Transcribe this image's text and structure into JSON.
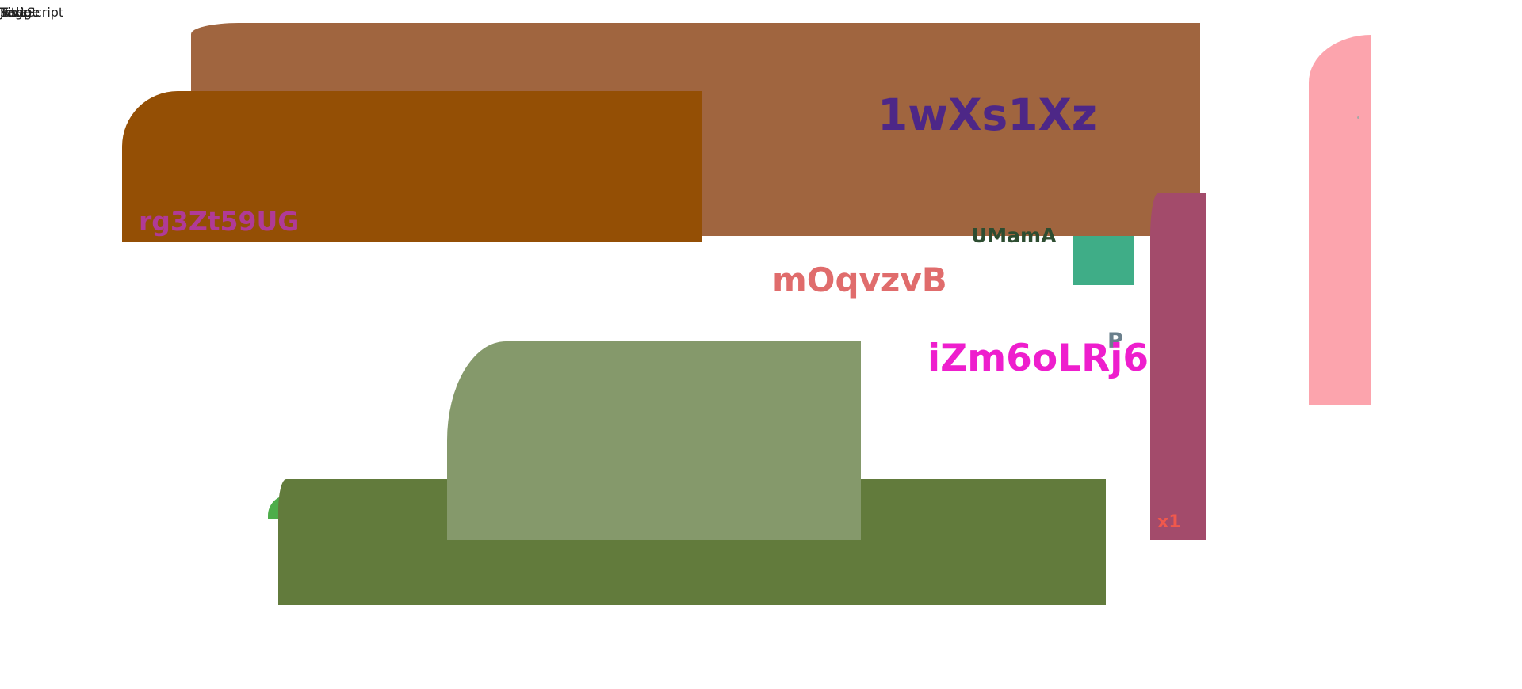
{
  "corner_text": [
    "JavaScript",
    "Page",
    "Title",
    "Image",
    "Text",
    "Script"
  ],
  "labels": {
    "brown_panel": "1wXs1Xz",
    "orange_panel": "rg3Zt59UG",
    "between": "UMamA",
    "middle": "mOqvzvB",
    "single": "P",
    "magenta_text": "iZm6oLRj6",
    "bar_text": "x1"
  },
  "colors": {
    "brown": "#a0653f",
    "orange": "#944f05",
    "teal": "#3fad87",
    "magenta": "#a34b6b",
    "pink": "#fca4ad",
    "olive": "#627b3c",
    "sage": "#85996b",
    "green": "#4ead4a"
  }
}
